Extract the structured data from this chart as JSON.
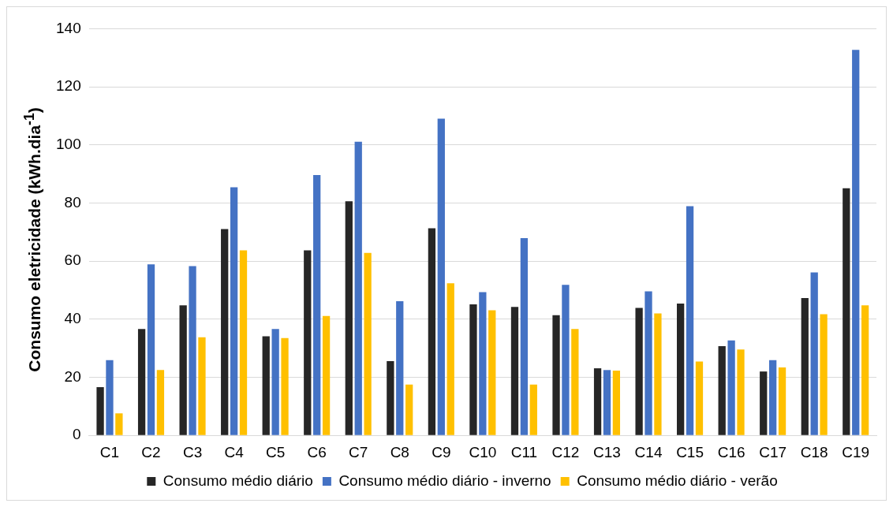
{
  "chart_data": {
    "type": "bar",
    "ylabel": "Consumo eletricidade (kWh.dia$^{-1}$)",
    "categories": [
      "C1",
      "C2",
      "C3",
      "C4",
      "C5",
      "C6",
      "C7",
      "C8",
      "C9",
      "C10",
      "C11",
      "C12",
      "C13",
      "C14",
      "C15",
      "C16",
      "C17",
      "C18",
      "C19"
    ],
    "series": [
      {
        "name": "Consumo médio diário",
        "color": "#262626",
        "values": [
          16.6,
          36.6,
          44.8,
          71,
          34.1,
          63.7,
          80.6,
          25.6,
          71.3,
          45.1,
          44.2,
          41.4,
          23.1,
          43.9,
          45.4,
          30.7,
          22,
          47.3,
          85.1
        ]
      },
      {
        "name": "Consumo médio diário - inverno",
        "color": "#4472c4",
        "values": [
          25.9,
          58.9,
          58.3,
          85.4,
          36.6,
          89.6,
          101.1,
          46.2,
          109,
          49.3,
          67.9,
          51.8,
          22.5,
          49.6,
          78.9,
          32.7,
          25.9,
          56.1,
          132.7
        ]
      },
      {
        "name": "Consumo médio diário - verão",
        "color": "#ffc000",
        "values": [
          7.6,
          22.5,
          33.8,
          63.7,
          33.5,
          41.1,
          62.8,
          17.5,
          52.4,
          43.1,
          17.5,
          36.6,
          22.3,
          42,
          25.4,
          29.6,
          23.4,
          41.7,
          44.8
        ]
      }
    ],
    "ylim": [
      0,
      140
    ],
    "yticks": [
      0,
      20,
      40,
      60,
      80,
      100,
      120,
      140
    ],
    "grid": "y",
    "legend": "bottom"
  }
}
